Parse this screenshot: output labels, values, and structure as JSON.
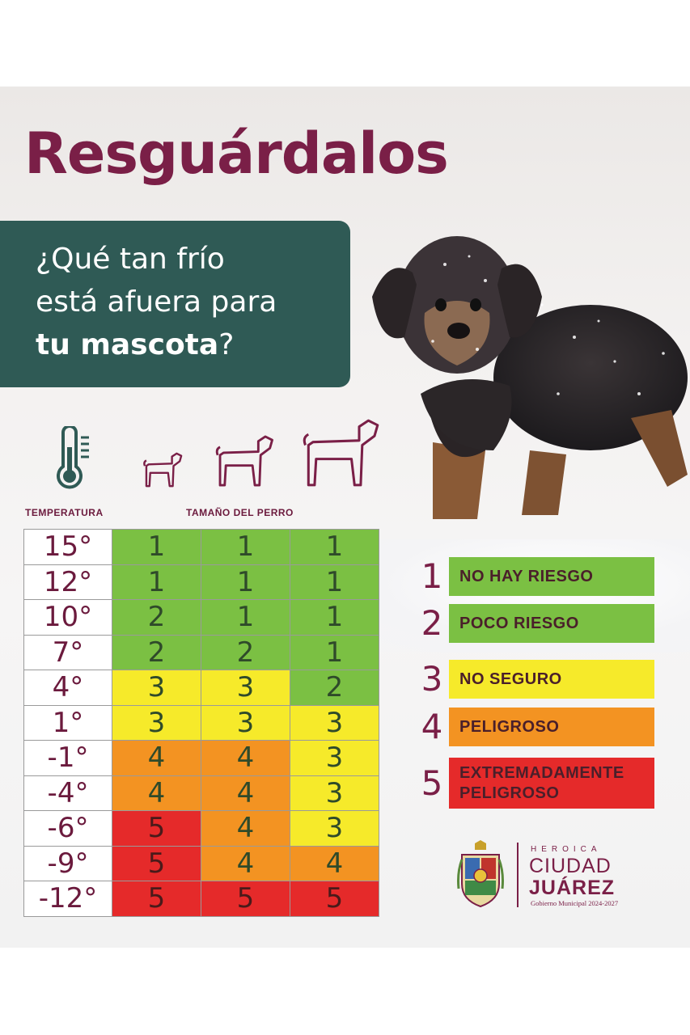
{
  "title": "Resguárdalos",
  "question": {
    "line1": "¿Qué tan frío",
    "line2": "está afuera para",
    "line3_bold": "tu mascota",
    "line3_end": "?"
  },
  "icons": {
    "thermometer": "thermometer-icon",
    "small_dog": "small-dog-icon",
    "medium_dog": "medium-dog-icon",
    "large_dog": "large-dog-icon",
    "photo": "dog-in-snow-photo"
  },
  "headers": {
    "temperature": "TEMPERATURA",
    "dog_size": "TAMAÑO DEL PERRO"
  },
  "colors": {
    "title": "#7a1f47",
    "question_box": "#2f5a55",
    "green": "#7bc043",
    "yellow": "#f6ea2a",
    "orange": "#f39322",
    "red": "#e52a2a"
  },
  "table": {
    "rows": [
      {
        "temp": "15°",
        "small": "1",
        "medium": "1",
        "large": "1"
      },
      {
        "temp": "12°",
        "small": "1",
        "medium": "1",
        "large": "1"
      },
      {
        "temp": "10°",
        "small": "2",
        "medium": "1",
        "large": "1"
      },
      {
        "temp": "7°",
        "small": "2",
        "medium": "2",
        "large": "1"
      },
      {
        "temp": "4°",
        "small": "3",
        "medium": "3",
        "large": "2"
      },
      {
        "temp": "1°",
        "small": "3",
        "medium": "3",
        "large": "3"
      },
      {
        "temp": "-1°",
        "small": "4",
        "medium": "4",
        "large": "3"
      },
      {
        "temp": "-4°",
        "small": "4",
        "medium": "4",
        "large": "3"
      },
      {
        "temp": "-6°",
        "small": "5",
        "medium": "4",
        "large": "3"
      },
      {
        "temp": "-9°",
        "small": "5",
        "medium": "4",
        "large": "4"
      },
      {
        "temp": "-12°",
        "small": "5",
        "medium": "5",
        "large": "5"
      }
    ]
  },
  "legend": [
    {
      "num": "1",
      "label_lines": [
        "NO HAY RIESGO"
      ],
      "color": "#7bc043"
    },
    {
      "num": "2",
      "label_lines": [
        "POCO RIESGO"
      ],
      "color": "#7bc043"
    },
    {
      "num": "3",
      "label_lines": [
        "NO SEGURO"
      ],
      "color": "#f6ea2a"
    },
    {
      "num": "4",
      "label_lines": [
        "PELIGROSO"
      ],
      "color": "#f39322"
    },
    {
      "num": "5",
      "label_lines": [
        "EXTREMADAMENTE",
        "PELIGROSO"
      ],
      "color": "#e52a2a"
    }
  ],
  "logo": {
    "line1": "HEROICA",
    "line2": "CIUDAD",
    "line3": "JUÁREZ",
    "line4": "Gobierno Municipal 2024-2027",
    "seal": "city-seal-icon"
  }
}
